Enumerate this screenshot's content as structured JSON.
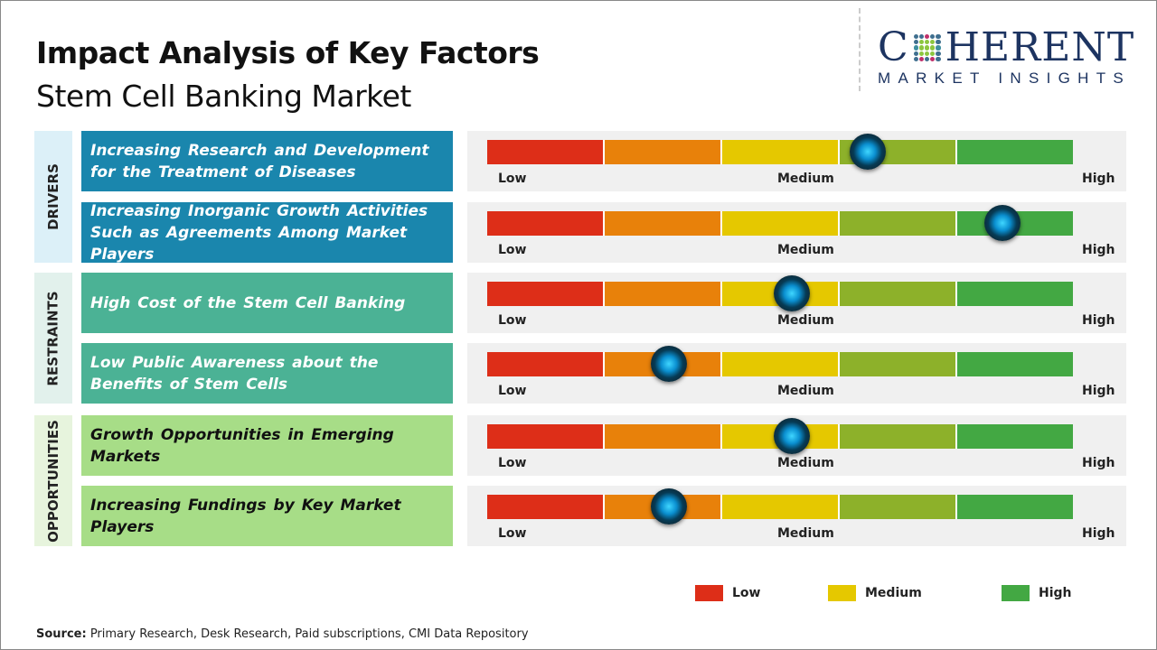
{
  "header": {
    "title": "Impact Analysis of Key Factors",
    "subtitle": "Stem Cell Banking Market"
  },
  "logo": {
    "text_top": "COHERENT",
    "text_bottom": "MARKET INSIGHTS"
  },
  "scale_labels": {
    "low": "Low",
    "medium": "Medium",
    "high": "High"
  },
  "scale_colors": [
    "#dd2e18",
    "#e8810a",
    "#e5c800",
    "#8db12a",
    "#43a843"
  ],
  "categories": [
    {
      "label": "DRIVERS",
      "box_color": "#1a86ad",
      "bg_color": "#dcf0f8",
      "text_color": "#ffffff"
    },
    {
      "label": "RESTRAINTS",
      "box_color": "#4bb295",
      "bg_color": "#e2f1ec",
      "text_color": "#ffffff"
    },
    {
      "label": "OPPORTUNITIES",
      "box_color": "#a7dd87",
      "bg_color": "#e7f4dd",
      "text_color": "#111111"
    }
  ],
  "factors": [
    {
      "category": 0,
      "text": "Increasing Research and Development for the Treatment of Diseases",
      "impact": 0.65
    },
    {
      "category": 0,
      "text": "Increasing Inorganic Growth Activities Such as Agreements Among Market Players",
      "impact": 0.88
    },
    {
      "category": 1,
      "text": "High Cost of the Stem Cell Banking",
      "impact": 0.52
    },
    {
      "category": 1,
      "text": "Low Public Awareness about the Benefits of Stem Cells",
      "impact": 0.31
    },
    {
      "category": 2,
      "text": "Growth Opportunities in Emerging Markets",
      "impact": 0.52
    },
    {
      "category": 2,
      "text": "Increasing Fundings by Key Market Players",
      "impact": 0.31
    }
  ],
  "legend": [
    {
      "label": "Low",
      "color": "#dd2e18"
    },
    {
      "label": "Medium",
      "color": "#e5c800"
    },
    {
      "label": "High",
      "color": "#43a843"
    }
  ],
  "source": {
    "label": "Source:",
    "text": " Primary Research, Desk Research, Paid subscriptions, CMI Data Repository"
  }
}
